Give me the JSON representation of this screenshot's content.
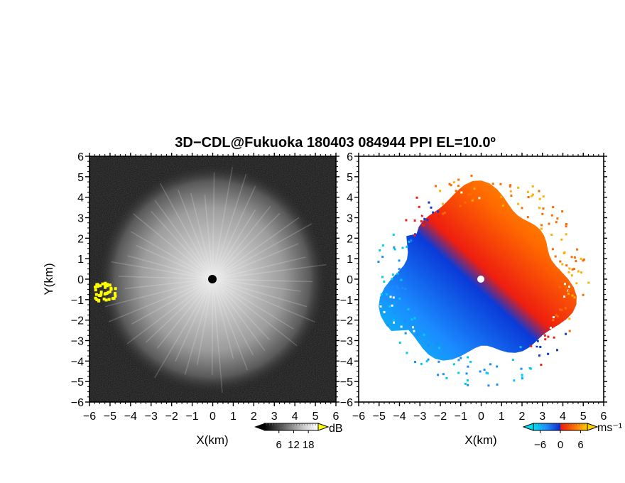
{
  "figure": {
    "title": "3D−CDL@Fukuoka 180403 084944 PPI EL=10.0º",
    "colors": {
      "background": "#ffffff",
      "frame": "#000000",
      "left_panel_field": "#101010",
      "left_panel_glow": "#d8d8d8",
      "left_panel_marker": "#ffff00",
      "radar_center_left": "#000000",
      "radar_center_right": "#ffffff"
    }
  },
  "chart_data": [
    {
      "type": "heatmap",
      "panel": "left",
      "quantity": "SNR",
      "xlabel": "X(km)",
      "ylabel": "Y(km)",
      "xlim": [
        -6,
        6
      ],
      "ylim": [
        -6,
        6
      ],
      "x_ticks": [
        "−6",
        "−5",
        "−4",
        "−3",
        "−2",
        "−1",
        "0",
        "1",
        "2",
        "3",
        "4",
        "5",
        "6"
      ],
      "y_ticks": [
        "−6",
        "−5",
        "−4",
        "−3",
        "−2",
        "−1",
        "0",
        "1",
        "2",
        "3",
        "4",
        "5",
        "6"
      ],
      "colorbar": {
        "unit": "dB",
        "ticks": [
          "6",
          "12",
          "18"
        ],
        "tick_values": [
          6,
          12,
          18
        ],
        "range": [
          0,
          22
        ],
        "colormap": "grayscale",
        "extend": "both"
      },
      "field": {
        "description_values": "echo coverage approx. radius 5 km around radar at (0,0); strong-return patch near (-5,-0.5)",
        "coverage_radius_km": 5.0,
        "center": [
          0,
          0
        ],
        "bright_patch": {
          "x_range": [
            -5.8,
            -4.7
          ],
          "y_range": [
            -1.0,
            -0.1
          ]
        }
      }
    },
    {
      "type": "heatmap",
      "panel": "right",
      "quantity": "Doppler velocity",
      "xlabel": "X(km)",
      "ylabel": "",
      "xlim": [
        -6,
        6
      ],
      "ylim": [
        -6,
        6
      ],
      "x_ticks": [
        "−6",
        "−5",
        "−4",
        "−3",
        "−2",
        "−1",
        "0",
        "1",
        "2",
        "3",
        "4",
        "5",
        "6"
      ],
      "y_ticks": [
        "−6",
        "−5",
        "−4",
        "−3",
        "−2",
        "−1",
        "0",
        "1",
        "2",
        "3",
        "4",
        "5",
        "6"
      ],
      "colorbar": {
        "unit": "ms⁻¹",
        "ticks": [
          "−6",
          "0",
          "6"
        ],
        "tick_values": [
          -6,
          0,
          6
        ],
        "range": [
          -8,
          8
        ],
        "colormap": "cyan-blue-red-orange",
        "extend": "both"
      },
      "field": {
        "description_values": "dipole pattern: negative (blue) to the southwest, positive (red/orange) to the northeast",
        "coverage_radius_km": 4.6,
        "center": [
          0,
          0
        ],
        "positive_lobe_direction_deg": 45
      }
    }
  ]
}
